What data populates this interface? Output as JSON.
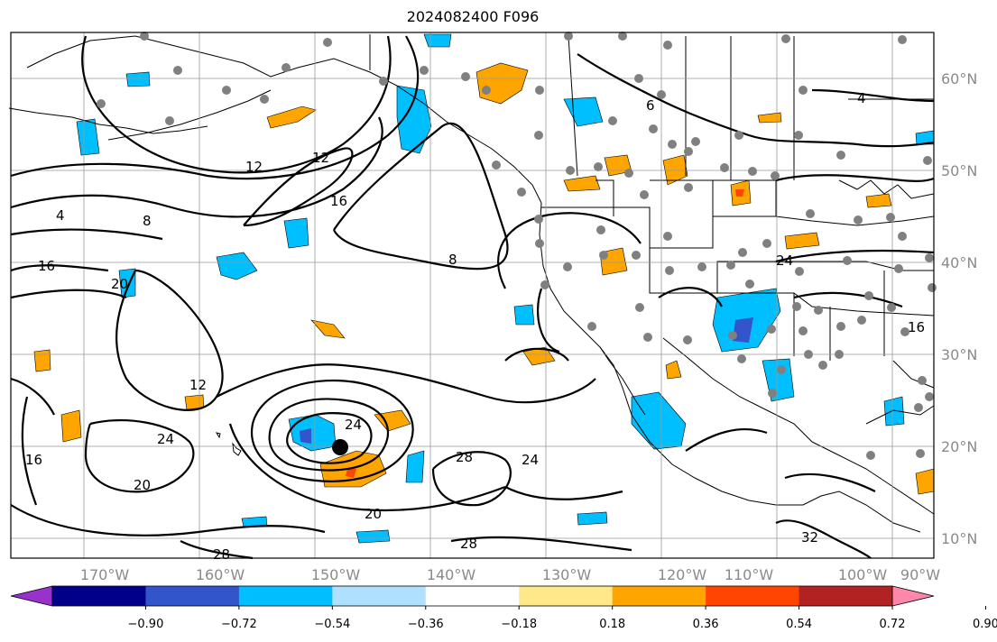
{
  "title": "2024082400 F096",
  "map": {
    "lon_ticks": [
      "170°W",
      "160°W",
      "150°W",
      "140°W",
      "130°W",
      "120°W",
      "110°W",
      "100°W",
      "90°W"
    ],
    "lat_ticks": [
      "60°N",
      "50°N",
      "40°N",
      "30°N",
      "20°N",
      "10°N"
    ],
    "contour_labels": [
      "4",
      "8",
      "12",
      "12",
      "16",
      "16",
      "16",
      "20",
      "20",
      "24",
      "24",
      "24",
      "28",
      "28",
      "28",
      "32",
      "8",
      "4",
      "6",
      "12",
      "16",
      "20",
      "24"
    ],
    "storm_marker": "tropical-cyclone-dot"
  },
  "colorbar": {
    "ticks": [
      "−0.90",
      "−0.72",
      "−0.54",
      "−0.36",
      "−0.18",
      "0.18",
      "0.36",
      "0.54",
      "0.72",
      "0.90"
    ],
    "colors": [
      "#9932cc",
      "#00008b",
      "#3355cc",
      "#00bfff",
      "#b0e0ff",
      "#ffffff",
      "#ffe88a",
      "#ffa500",
      "#ff4500",
      "#b22222",
      "#ff88aa"
    ]
  }
}
